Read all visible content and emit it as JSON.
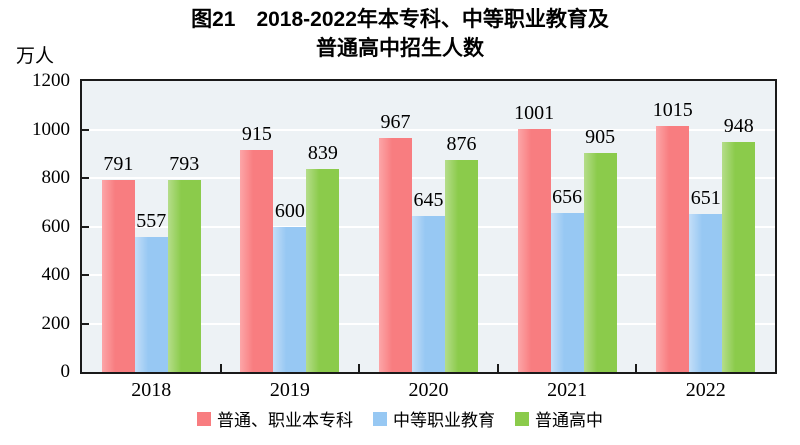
{
  "figure": {
    "title_line1": "图21　2018-2022年本专科、中等职业教育及",
    "title_line2": "普通高中招生人数",
    "y_unit_label": "万人"
  },
  "colors": {
    "plot_bg": "#edf2f5",
    "gridline": "#ffffff",
    "axis": "#1a1a1a",
    "text": "#000000"
  },
  "chart_data": {
    "type": "bar",
    "title": "图21 2018-2022年本专科、中等职业教育及普通高中招生人数",
    "categories": [
      "2018",
      "2019",
      "2020",
      "2021",
      "2022"
    ],
    "series": [
      {
        "name": "普通、职业本专科",
        "color": "#f87d80",
        "color_light": "#fca6a8",
        "values": [
          791,
          915,
          967,
          1001,
          1015
        ]
      },
      {
        "name": "中等职业教育",
        "color": "#97c8f3",
        "color_light": "#c3def8",
        "values": [
          557,
          600,
          645,
          656,
          651
        ]
      },
      {
        "name": "普通高中",
        "color": "#8bcb4b",
        "color_light": "#b5dd8a",
        "values": [
          793,
          839,
          876,
          905,
          948
        ]
      }
    ],
    "xlabel": "",
    "ylabel": "万人",
    "ylim": [
      0,
      1200
    ],
    "ytick_step": 200,
    "grid": true,
    "legend_position": "bottom"
  }
}
